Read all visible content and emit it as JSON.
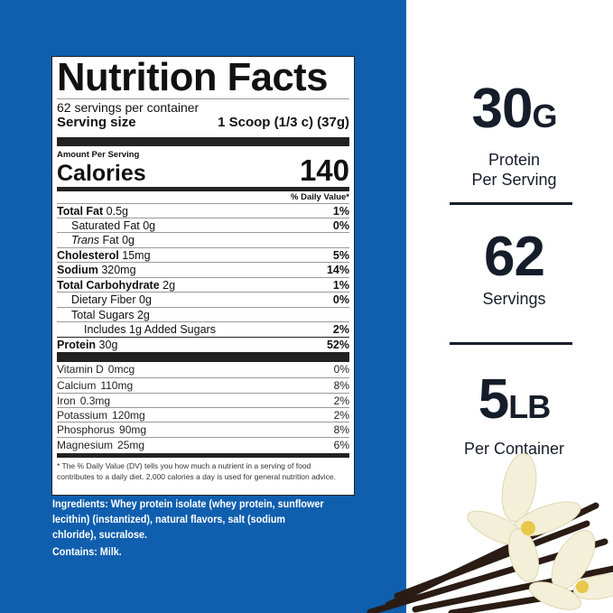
{
  "label": {
    "title": "Nutrition Facts",
    "servings": "62 servings per container",
    "serving_size_label": "Serving size",
    "serving_size_value": "1 Scoop (1/3 c) (37g)",
    "amount_per_serving": "Amount Per Serving",
    "calories_label": "Calories",
    "calories_value": "140",
    "dv_header": "% Daily Value*",
    "nutrients": [
      {
        "name": "Total Fat",
        "amount": "0.5g",
        "dv": "1%"
      },
      {
        "name": "Saturated Fat",
        "amount": "0g",
        "dv": "0%"
      },
      {
        "name": "Trans",
        "name2": "Fat",
        "amount": "0g",
        "dv": ""
      },
      {
        "name": "Cholesterol",
        "amount": "15mg",
        "dv": "5%"
      },
      {
        "name": "Sodium",
        "amount": "320mg",
        "dv": "14%"
      },
      {
        "name": "Total Carbohydrate",
        "amount": "2g",
        "dv": "1%"
      },
      {
        "name": "Dietary Fiber",
        "amount": "0g",
        "dv": "0%"
      },
      {
        "name": "Total Sugars",
        "amount": "2g",
        "dv": ""
      },
      {
        "name": "Includes 1g Added Sugars",
        "amount": "",
        "dv": "2%"
      },
      {
        "name": "Protein",
        "amount": "30g",
        "dv": "52%"
      }
    ],
    "vitamins": [
      {
        "name": "Vitamin D",
        "amount": "0mcg",
        "dv": "0%"
      },
      {
        "name": "Calcium",
        "amount": "110mg",
        "dv": "8%"
      },
      {
        "name": "Iron",
        "amount": "0.3mg",
        "dv": "2%"
      },
      {
        "name": "Potassium",
        "amount": "120mg",
        "dv": "2%"
      },
      {
        "name": "Phosphorus",
        "amount": "90mg",
        "dv": "8%"
      },
      {
        "name": "Magnesium",
        "amount": "25mg",
        "dv": "6%"
      }
    ],
    "footnote": "* The % Daily Value (DV) tells you how much a nutrient in a serving of food contributes to a daily diet. 2,000 calories a day is used for general nutrition advice."
  },
  "ingredients": "Ingredients: Whey protein isolate (whey protein, sunflower lecithin) (instantized), natural flavors, salt (sodium chloride), sucralose.",
  "contains": "Contains: Milk.",
  "stats": [
    {
      "value": "30",
      "unit": "G",
      "label1": "Protein",
      "label2": "Per Serving"
    },
    {
      "value": "62",
      "unit": "",
      "label1": "Servings",
      "label2": ""
    },
    {
      "value": "5",
      "unit": "LB",
      "label1": "Per Container",
      "label2": ""
    }
  ],
  "colors": {
    "brand_blue": "#0f5fae",
    "text_navy": "#161d2a"
  }
}
